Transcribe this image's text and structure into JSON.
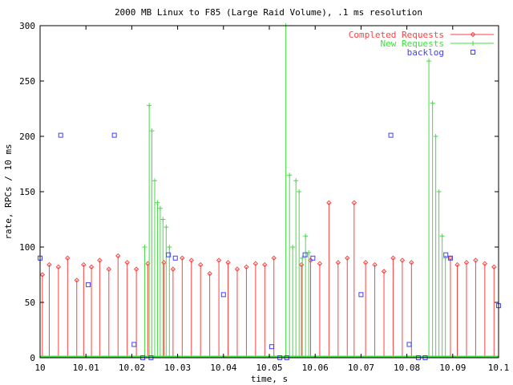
{
  "chart_data": {
    "type": "line",
    "title": "2000 MB Linux to F85 (Large Raid Volume), .1 ms resolution",
    "xlabel": "time, s",
    "ylabel": "rate, RPCs / 10 ms",
    "xlim": [
      10.0,
      10.1
    ],
    "ylim": [
      0,
      300
    ],
    "x_ticks": [
      "10",
      "10.01",
      "10.02",
      "10.03",
      "10.04",
      "10.05",
      "10.06",
      "10.07",
      "10.08",
      "10.09",
      "10.1"
    ],
    "y_ticks": [
      "0",
      "50",
      "100",
      "150",
      "200",
      "250",
      "300"
    ],
    "grid": false,
    "legend_position": "top-right",
    "series": [
      {
        "name": "Completed Requests",
        "style": "impulses-with-diamonds",
        "color": "#ff4040",
        "x": [
          10.0005,
          10.002,
          10.004,
          10.006,
          10.008,
          10.0095,
          10.0112,
          10.013,
          10.015,
          10.017,
          10.019,
          10.021,
          10.0235,
          10.027,
          10.029,
          10.031,
          10.033,
          10.035,
          10.037,
          10.039,
          10.041,
          10.043,
          10.045,
          10.047,
          10.049,
          10.051,
          10.057,
          10.059,
          10.061,
          10.063,
          10.065,
          10.067,
          10.0685,
          10.071,
          10.073,
          10.075,
          10.077,
          10.079,
          10.081,
          10.0895,
          10.091,
          10.093,
          10.095,
          10.097,
          10.099
        ],
        "values": [
          75,
          84,
          82,
          90,
          70,
          84,
          82,
          88,
          80,
          92,
          86,
          80,
          85,
          86,
          80,
          90,
          88,
          84,
          76,
          88,
          86,
          80,
          82,
          85,
          84,
          90,
          84,
          88,
          85,
          140,
          86,
          90,
          140,
          86,
          84,
          78,
          90,
          88,
          86,
          90,
          84,
          86,
          88,
          85,
          82
        ]
      },
      {
        "name": "New Requests",
        "style": "impulses-with-crosses",
        "color": "#40e040",
        "x": [
          10.0228,
          10.0238,
          10.0244,
          10.025,
          10.0256,
          10.0262,
          10.0268,
          10.0275,
          10.0282,
          10.0536,
          10.0544,
          10.0551,
          10.0558,
          10.0565,
          10.0572,
          10.0579,
          10.0586,
          10.0848,
          10.0856,
          10.0863,
          10.087,
          10.0877,
          10.0884
        ],
        "values": [
          100,
          228,
          205,
          160,
          140,
          135,
          125,
          118,
          100,
          300,
          165,
          100,
          160,
          150,
          90,
          110,
          95,
          268,
          230,
          200,
          150,
          110,
          90
        ]
      },
      {
        "name": "backlog",
        "style": "points",
        "color": "#4040ff",
        "x": [
          10.0,
          10.0105,
          10.0205,
          10.0224,
          10.0242,
          10.028,
          10.0295,
          10.04,
          10.0505,
          10.0523,
          10.0538,
          10.0578,
          10.0595,
          10.07,
          10.0805,
          10.0825,
          10.084,
          10.0885,
          10.0895,
          10.1,
          10.0045,
          10.0162,
          10.0765
        ],
        "values": [
          90,
          66,
          12,
          0,
          0,
          93,
          90,
          57,
          10,
          0,
          0,
          93,
          90,
          57,
          12,
          0,
          0,
          93,
          90,
          47,
          201,
          201,
          201
        ]
      }
    ]
  }
}
